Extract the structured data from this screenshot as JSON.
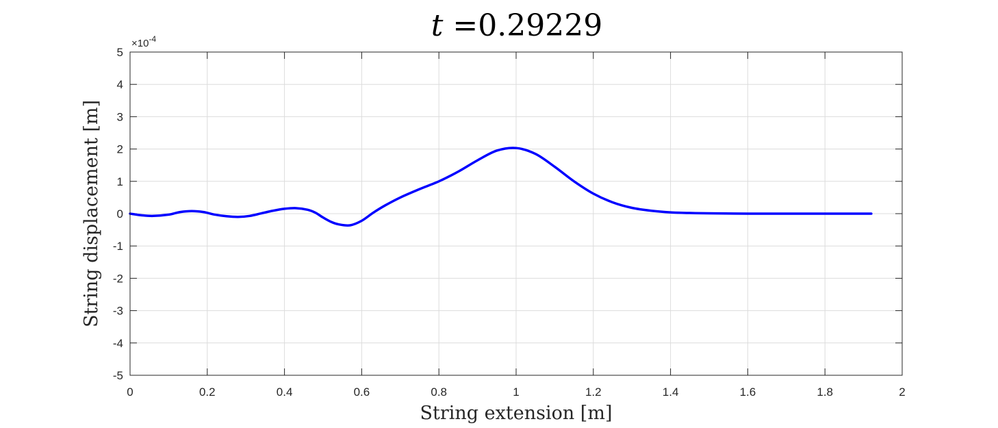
{
  "chart_data": {
    "type": "line",
    "title": "t =0.29229",
    "title_var": "t",
    "title_rest": " =0.29229",
    "xlabel": "String extension [m]",
    "ylabel": "String displacement [m]",
    "xlim": [
      0,
      2
    ],
    "ylim": [
      -5,
      5
    ],
    "y_multiplier": "×10",
    "y_exponent": "-4",
    "xticks": [
      "0",
      "0.2",
      "0.4",
      "0.6",
      "0.8",
      "1",
      "1.2",
      "1.4",
      "1.6",
      "1.8",
      "2"
    ],
    "yticks": [
      "-5",
      "-4",
      "-3",
      "-2",
      "-1",
      "0",
      "1",
      "2",
      "3",
      "4",
      "5"
    ],
    "grid": true,
    "line_color": "#0000ff",
    "series": [
      {
        "x": [
          0,
          0.03,
          0.06,
          0.1,
          0.13,
          0.16,
          0.19,
          0.22,
          0.25,
          0.28,
          0.31,
          0.34,
          0.37,
          0.4,
          0.43,
          0.46,
          0.48,
          0.5,
          0.52,
          0.54,
          0.57,
          0.6,
          0.63,
          0.66,
          0.7,
          0.75,
          0.8,
          0.85,
          0.9,
          0.95,
          1.0,
          1.05,
          1.1,
          1.15,
          1.2,
          1.25,
          1.3,
          1.35,
          1.4,
          1.45,
          1.5,
          1.6,
          1.7,
          1.8,
          1.92
        ],
        "values": [
          0,
          -0.05,
          -0.07,
          -0.03,
          0.05,
          0.08,
          0.05,
          -0.03,
          -0.08,
          -0.1,
          -0.07,
          0.01,
          0.09,
          0.15,
          0.17,
          0.12,
          0.03,
          -0.12,
          -0.25,
          -0.33,
          -0.36,
          -0.22,
          0.03,
          0.25,
          0.5,
          0.76,
          1.0,
          1.3,
          1.65,
          1.95,
          2.03,
          1.85,
          1.45,
          1.0,
          0.62,
          0.35,
          0.18,
          0.09,
          0.04,
          0.02,
          0.01,
          0.0,
          0.0,
          0.0,
          0.0
        ]
      }
    ]
  }
}
